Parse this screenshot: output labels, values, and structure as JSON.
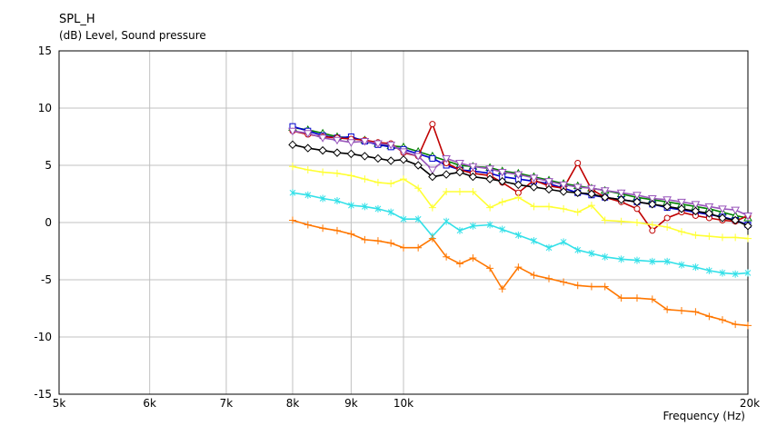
{
  "chart_data": {
    "type": "line",
    "title": "SPL_H",
    "ylabel": "(dB)  Level, Sound pressure",
    "xlabel": "Frequency  (Hz)",
    "xscale": "log",
    "xlim": [
      5000,
      20000
    ],
    "ylim": [
      -15,
      15
    ],
    "xticks": [
      5000,
      6000,
      7000,
      8000,
      9000,
      10000,
      20000
    ],
    "xtick_labels": [
      "5k",
      "6k",
      "7k",
      "8k",
      "9k",
      "10k",
      "20k"
    ],
    "yticks": [
      15,
      10,
      5,
      0,
      -5,
      -10,
      -15
    ],
    "ytick_labels": [
      "15",
      "10",
      "5",
      "0",
      "-5",
      "-10",
      "-15"
    ],
    "grid": true,
    "x": [
      8000,
      8250,
      8500,
      8750,
      9000,
      9250,
      9500,
      9750,
      10000,
      10300,
      10600,
      10900,
      11200,
      11500,
      11900,
      12200,
      12600,
      13000,
      13400,
      13800,
      14200,
      14600,
      15000,
      15500,
      16000,
      16500,
      17000,
      17500,
      18000,
      18500,
      19000,
      19500,
      20000
    ],
    "series": [
      {
        "color": "#008000",
        "marker": "triangle",
        "values": [
          8.3,
          8.1,
          7.8,
          7.5,
          7.4,
          7.2,
          6.9,
          6.7,
          6.6,
          6.2,
          5.8,
          5.4,
          5.0,
          4.9,
          4.8,
          4.5,
          4.3,
          4.0,
          3.7,
          3.4,
          3.2,
          3.0,
          2.8,
          2.5,
          2.2,
          2.0,
          1.8,
          1.6,
          1.4,
          1.2,
          0.9,
          0.6,
          0.4
        ]
      },
      {
        "color": "#0000cc",
        "marker": "square",
        "values": [
          8.4,
          8.0,
          7.6,
          7.4,
          7.5,
          7.1,
          6.8,
          6.6,
          6.4,
          6.0,
          5.6,
          5.0,
          4.6,
          4.5,
          4.3,
          4.0,
          3.8,
          3.6,
          3.4,
          3.0,
          2.6,
          2.4,
          2.2,
          2.0,
          1.8,
          1.6,
          1.3,
          1.1,
          0.9,
          0.7,
          0.5,
          0.2,
          -0.2
        ]
      },
      {
        "color": "#c00000",
        "marker": "circle",
        "values": [
          8.0,
          7.7,
          7.5,
          7.4,
          7.3,
          7.2,
          7.0,
          6.9,
          6.1,
          5.8,
          8.6,
          5.2,
          4.6,
          4.3,
          4.1,
          3.5,
          2.6,
          3.7,
          3.2,
          3.0,
          5.2,
          2.9,
          2.2,
          1.8,
          1.2,
          -0.7,
          0.4,
          0.9,
          0.6,
          0.4,
          0.2,
          0.1,
          0.6
        ]
      },
      {
        "color": "#9955bb",
        "marker": "triangle-down",
        "values": [
          8.0,
          7.8,
          7.4,
          7.2,
          7.0,
          7.1,
          6.9,
          6.8,
          6.2,
          5.8,
          4.6,
          5.6,
          5.2,
          4.9,
          4.7,
          4.4,
          4.2,
          3.9,
          3.6,
          3.3,
          3.1,
          3.0,
          2.8,
          2.6,
          2.4,
          2.1,
          2.0,
          1.8,
          1.6,
          1.4,
          1.2,
          1.1,
          0.6
        ]
      },
      {
        "color": "#000000",
        "marker": "diamond",
        "values": [
          6.8,
          6.5,
          6.3,
          6.1,
          6.0,
          5.8,
          5.6,
          5.4,
          5.5,
          5.0,
          4.0,
          4.2,
          4.4,
          4.0,
          3.8,
          3.6,
          3.3,
          3.1,
          2.9,
          2.7,
          2.6,
          2.5,
          2.2,
          2.0,
          1.8,
          1.6,
          1.4,
          1.2,
          1.0,
          0.8,
          0.4,
          0.2,
          -0.3
        ]
      },
      {
        "color": "#ffff33",
        "marker": "plus",
        "values": [
          4.9,
          4.6,
          4.4,
          4.3,
          4.1,
          3.8,
          3.5,
          3.4,
          3.8,
          3.0,
          1.3,
          2.7,
          2.7,
          2.7,
          1.3,
          1.8,
          2.2,
          1.4,
          1.4,
          1.2,
          0.9,
          1.5,
          0.2,
          0.1,
          0.0,
          -0.2,
          -0.4,
          -0.8,
          -1.1,
          -1.2,
          -1.3,
          -1.3,
          -1.4
        ]
      },
      {
        "color": "#33e0e8",
        "marker": "star",
        "values": [
          2.6,
          2.4,
          2.1,
          1.9,
          1.5,
          1.4,
          1.2,
          0.9,
          0.3,
          0.3,
          -1.2,
          0.1,
          -0.7,
          -0.3,
          -0.2,
          -0.6,
          -1.1,
          -1.6,
          -2.2,
          -1.7,
          -2.4,
          -2.7,
          -3.0,
          -3.2,
          -3.3,
          -3.4,
          -3.4,
          -3.7,
          -3.9,
          -4.2,
          -4.4,
          -4.5,
          -4.4
        ]
      },
      {
        "color": "#ff7700",
        "marker": "plus",
        "values": [
          0.2,
          -0.2,
          -0.5,
          -0.7,
          -1.0,
          -1.5,
          -1.6,
          -1.8,
          -2.2,
          -2.2,
          -1.4,
          -3.0,
          -3.6,
          -3.1,
          -4.0,
          -5.8,
          -3.9,
          -4.6,
          -4.9,
          -5.2,
          -5.5,
          -5.6,
          -5.6,
          -6.6,
          -6.6,
          -6.7,
          -7.6,
          -7.7,
          -7.8,
          -8.2,
          -8.5,
          -8.9,
          -9.0
        ]
      }
    ]
  }
}
